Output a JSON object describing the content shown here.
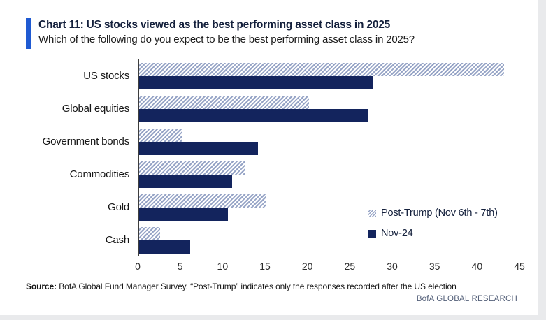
{
  "header": {
    "title": "Chart 11: US stocks viewed as the best performing asset class in 2025",
    "subtitle": "Which of the following do you expect to be the best performing asset class in 2025?",
    "accent_color": "#1f5ad2"
  },
  "chart_data": {
    "type": "bar",
    "orientation": "horizontal",
    "categories": [
      "US stocks",
      "Global equities",
      "Government bonds",
      "Commodities",
      "Gold",
      "Cash"
    ],
    "series": [
      {
        "name": "Post-Trump (Nov 6th - 7th)",
        "style": "hatched",
        "color": "#96a4c6",
        "values": [
          43,
          20,
          5,
          12.5,
          15,
          2.5
        ]
      },
      {
        "name": "Nov-24",
        "style": "solid",
        "color": "#13245d",
        "values": [
          27.5,
          27,
          14,
          11,
          10.5,
          6
        ]
      }
    ],
    "xlim": [
      0,
      45
    ],
    "xticks": [
      0,
      5,
      10,
      15,
      20,
      25,
      30,
      35,
      40,
      45
    ],
    "grid": false,
    "legend_position": "right-center"
  },
  "footer": {
    "source_label": "Source:",
    "source_text": " BofA Global Fund Manager Survey. “Post-Trump” indicates only the responses recorded after the US election",
    "brand": "BofA GLOBAL RESEARCH"
  }
}
